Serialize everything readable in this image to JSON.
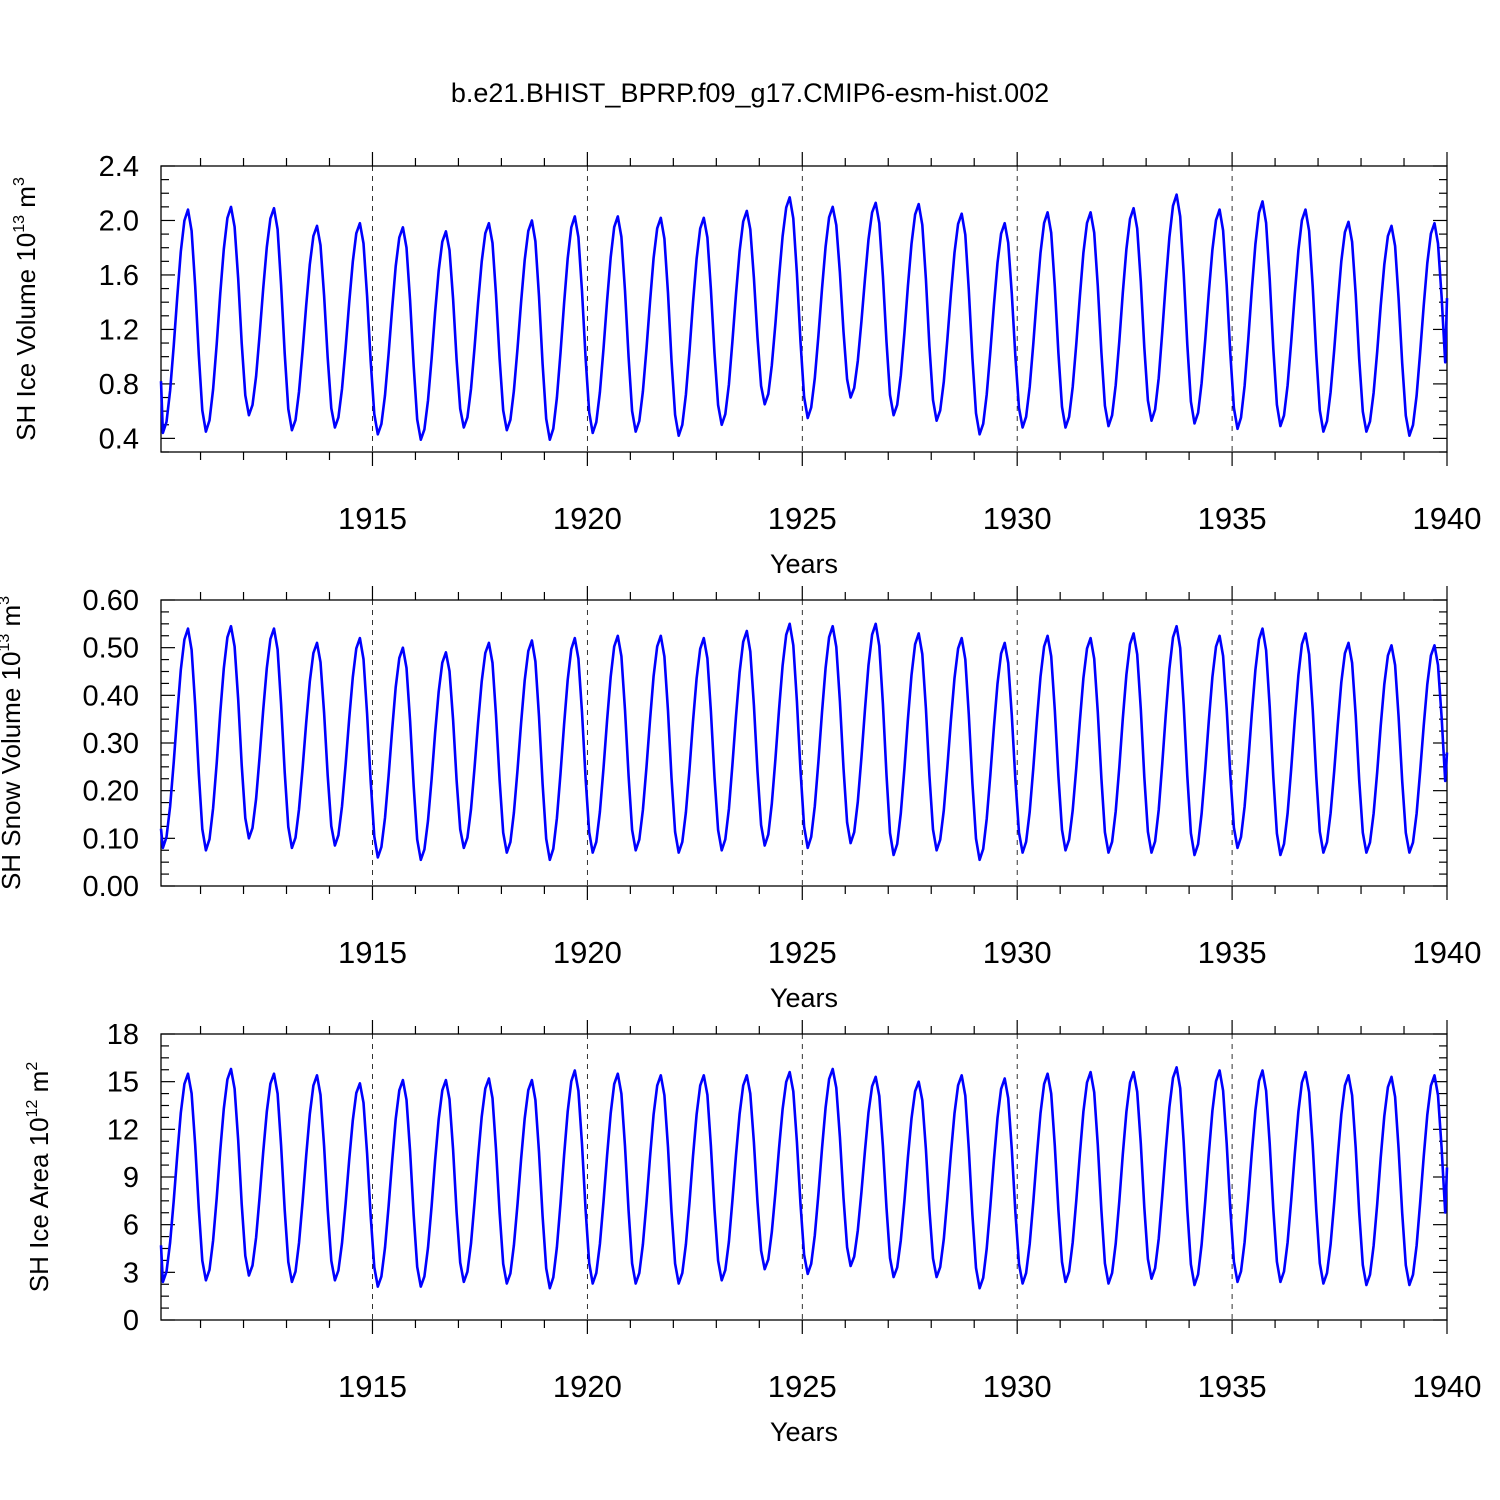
{
  "chart_data": {
    "title": "b.e21.BHIST_BPRP.f09_g17.CMIP6-esm-hist.002",
    "type": "line",
    "line_color": "#0000ff",
    "xlim": [
      1910.08,
      1940.0
    ],
    "x_ticks": [
      1915,
      1920,
      1925,
      1930,
      1935,
      1940
    ],
    "x_tick_labels": [
      "1915",
      "1920",
      "1925",
      "1930",
      "1935",
      "1940"
    ],
    "months_per_year": 12,
    "panels": [
      {
        "xlabel": "Years",
        "ylabel": {
          "text": "SH Ice Volume",
          "base": "10",
          "exponent": "13",
          "unit": "m",
          "unit_exp": "3"
        },
        "ylim": [
          0.3,
          2.4
        ],
        "y_ticks": [
          0.4,
          0.8,
          1.2,
          1.6,
          2.0,
          2.4
        ],
        "y_tick_labels": [
          "0.4",
          "0.8",
          "1.2",
          "1.6",
          "2.0",
          "2.4"
        ],
        "start": 0.82,
        "end": 1.43,
        "annual_max": [
          2.08,
          2.1,
          2.09,
          1.96,
          1.98,
          1.95,
          1.92,
          1.98,
          2.0,
          2.03,
          2.03,
          2.02,
          2.02,
          2.07,
          2.17,
          2.1,
          2.13,
          2.12,
          2.05,
          1.98,
          2.06,
          2.06,
          2.09,
          2.19,
          2.08,
          2.14,
          2.08,
          1.99,
          1.96,
          1.98
        ],
        "annual_min": [
          0.44,
          0.45,
          0.57,
          0.46,
          0.48,
          0.43,
          0.39,
          0.48,
          0.46,
          0.39,
          0.44,
          0.45,
          0.42,
          0.5,
          0.65,
          0.55,
          0.7,
          0.57,
          0.53,
          0.43,
          0.48,
          0.48,
          0.49,
          0.53,
          0.51,
          0.47,
          0.49,
          0.45,
          0.45,
          0.42
        ]
      },
      {
        "xlabel": "Years",
        "ylabel": {
          "text": "SH Snow Volume",
          "base": "10",
          "exponent": "13",
          "unit": "m",
          "unit_exp": "3"
        },
        "ylim": [
          0.0,
          0.6
        ],
        "y_ticks": [
          0.0,
          0.1,
          0.2,
          0.3,
          0.4,
          0.5,
          0.6
        ],
        "y_tick_labels": [
          "0.00",
          "0.10",
          "0.20",
          "0.30",
          "0.40",
          "0.50",
          "0.60"
        ],
        "start": 0.12,
        "end": 0.28,
        "annual_max": [
          0.54,
          0.545,
          0.54,
          0.51,
          0.52,
          0.5,
          0.49,
          0.51,
          0.515,
          0.52,
          0.525,
          0.525,
          0.52,
          0.535,
          0.55,
          0.545,
          0.55,
          0.53,
          0.52,
          0.51,
          0.525,
          0.52,
          0.53,
          0.545,
          0.525,
          0.54,
          0.53,
          0.51,
          0.505,
          0.505
        ],
        "annual_min": [
          0.08,
          0.075,
          0.1,
          0.08,
          0.085,
          0.06,
          0.055,
          0.08,
          0.07,
          0.055,
          0.07,
          0.075,
          0.07,
          0.075,
          0.085,
          0.08,
          0.09,
          0.065,
          0.075,
          0.055,
          0.07,
          0.075,
          0.07,
          0.07,
          0.065,
          0.08,
          0.065,
          0.07,
          0.07,
          0.07
        ]
      },
      {
        "xlabel": "Years",
        "ylabel": {
          "text": "SH Ice Area",
          "base": "10",
          "exponent": "12",
          "unit": "m",
          "unit_exp": "2"
        },
        "ylim": [
          0,
          18
        ],
        "y_ticks": [
          0,
          3,
          6,
          9,
          12,
          15,
          18
        ],
        "y_tick_labels": [
          "0",
          "3",
          "6",
          "9",
          "12",
          "15",
          "18"
        ],
        "start": 4.7,
        "end": 9.6,
        "annual_max": [
          15.5,
          15.8,
          15.5,
          15.4,
          14.9,
          15.1,
          15.1,
          15.2,
          15.1,
          15.7,
          15.5,
          15.4,
          15.4,
          15.4,
          15.6,
          15.8,
          15.3,
          15.0,
          15.4,
          15.2,
          15.5,
          15.6,
          15.6,
          15.9,
          15.7,
          15.7,
          15.6,
          15.4,
          15.3,
          15.4
        ],
        "annual_min": [
          2.4,
          2.5,
          2.8,
          2.4,
          2.5,
          2.1,
          2.1,
          2.4,
          2.3,
          2.0,
          2.3,
          2.3,
          2.3,
          2.5,
          3.2,
          2.9,
          3.4,
          2.7,
          2.7,
          2.0,
          2.3,
          2.4,
          2.3,
          2.6,
          2.2,
          2.4,
          2.4,
          2.3,
          2.2,
          2.2
        ]
      }
    ]
  }
}
